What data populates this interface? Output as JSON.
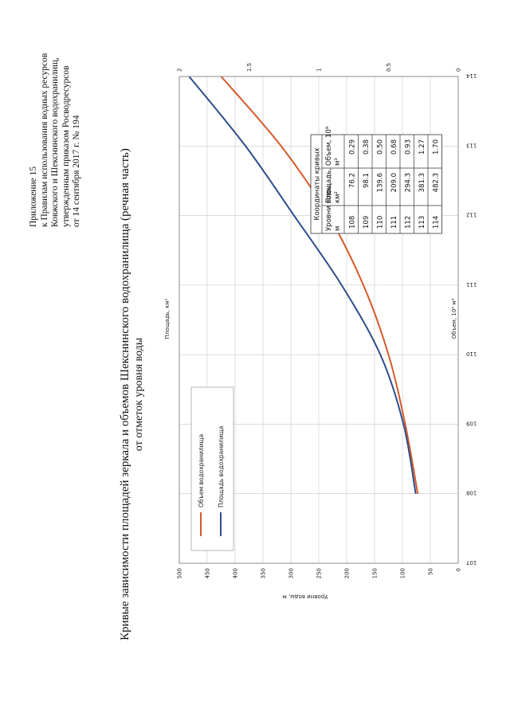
{
  "annex": {
    "line1": "Приложение 15",
    "line2": "к Правилам использования водных ресурсов",
    "line3": "Ковжского и Шекснинского водохранилищ,",
    "line4": "утвержденным приказом Росводресурсов",
    "line5": "от 14 сентября 2017 г. № 194"
  },
  "chart_data": {
    "type": "line",
    "title": "Кривые зависимости площадей зеркала и объемов Шекснинского водохранилища (речная часть)",
    "subtitle": "от отметок уровня воды",
    "ylabel": "Уровни воды, м",
    "xlabel_top": "Площадь, км²",
    "xlabel_bottom": "Объем, 10⁹ м³",
    "ylim": [
      107,
      114
    ],
    "y_ticks": [
      "107",
      "108",
      "109",
      "110",
      "111",
      "112",
      "113",
      "114"
    ],
    "x_top_lim": [
      0,
      500
    ],
    "x_top_ticks": [
      "0",
      "50",
      "100",
      "150",
      "200",
      "250",
      "300",
      "350",
      "400",
      "450",
      "500"
    ],
    "x_bottom_lim": [
      0,
      2
    ],
    "x_bottom_ticks": [
      "0",
      "0.5",
      "1",
      "1.5",
      "2"
    ],
    "grid": true,
    "legend_position": "top-left",
    "series": [
      {
        "name": "Объем водохранилища",
        "color": "#d65a2a",
        "axis": "bottom",
        "x": [
          0.29,
          0.38,
          0.5,
          0.68,
          0.93,
          1.27,
          1.7
        ],
        "y": [
          108,
          109,
          110,
          111,
          112,
          113,
          114
        ]
      },
      {
        "name": "Площадь водохранилища",
        "color": "#2f4d8a",
        "axis": "top",
        "x": [
          76.2,
          98.1,
          139.6,
          209.0,
          294.3,
          381.3,
          482.3
        ],
        "y": [
          108,
          109,
          110,
          111,
          112,
          113,
          114
        ]
      }
    ],
    "table": {
      "title": "Координаты кривых",
      "headers": [
        "Уровни воды, м",
        "Площадь, км²",
        "Объем, 10⁹ м³"
      ],
      "rows": [
        [
          "108",
          "76.2",
          "0.29"
        ],
        [
          "109",
          "98.1",
          "0.38"
        ],
        [
          "110",
          "139.6",
          "0.50"
        ],
        [
          "111",
          "209.0",
          "0.68"
        ],
        [
          "112",
          "294.3",
          "0.93"
        ],
        [
          "113",
          "381.3",
          "1.27"
        ],
        [
          "114",
          "482.3",
          "1.70"
        ]
      ]
    }
  }
}
